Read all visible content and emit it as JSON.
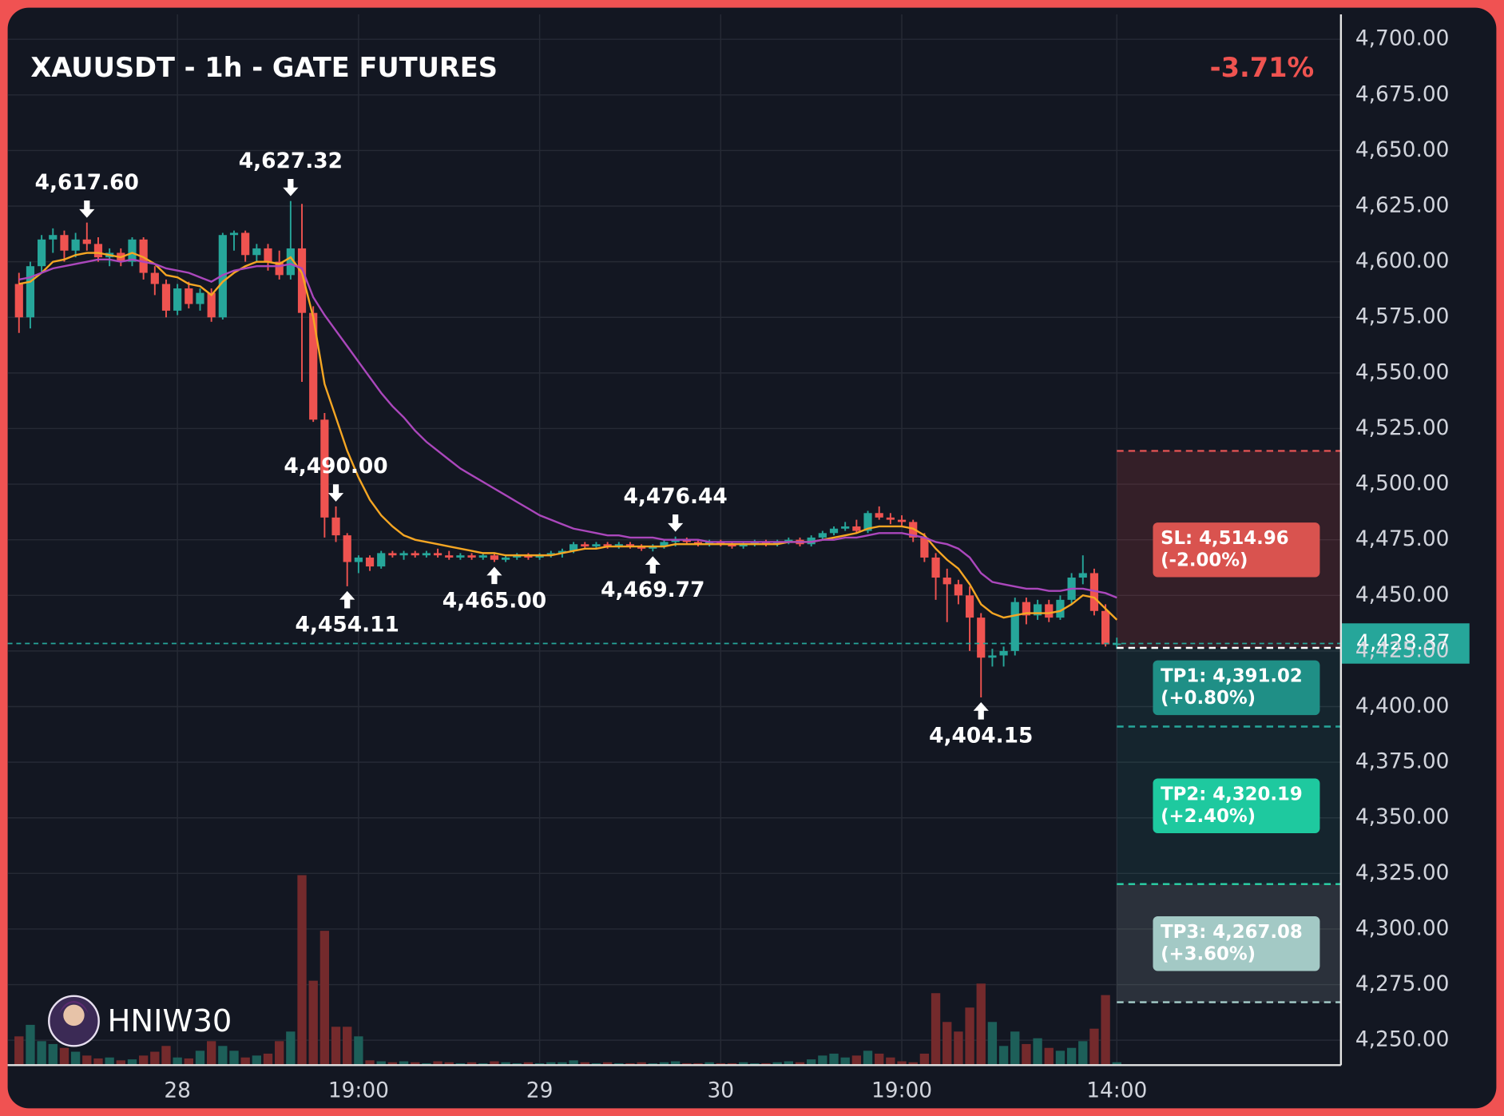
{
  "chart_data": {
    "type": "candlestick",
    "title": "XAUUSDT - 1h - GATE FUTURES",
    "change": "-3.71%",
    "open": [
      4590,
      4575,
      4598,
      4610,
      4612,
      4605,
      4610,
      4608,
      4602,
      4604,
      4600,
      4610,
      4595,
      4590,
      4578,
      4588,
      4581,
      4586,
      4575,
      4612,
      4613,
      4603,
      4606,
      4600,
      4594,
      4606,
      4577,
      4529,
      4485,
      4477,
      4465,
      4467,
      4463,
      4469,
      4468,
      4469,
      4468,
      4469,
      4468,
      4467,
      4468,
      4467,
      4468,
      4466,
      4467,
      4468,
      4467,
      4468,
      4469,
      4470,
      4473,
      4472,
      4473,
      4472,
      4473,
      4472,
      4471,
      4472,
      4474,
      4475,
      4474,
      4473,
      4474,
      4473,
      4472,
      4473,
      4474,
      4473,
      4474,
      4475,
      4473,
      4476,
      4478,
      4480,
      4481,
      4479,
      4487,
      4485,
      4484,
      4483,
      4476,
      4467,
      4458,
      4455,
      4450,
      4440,
      4422,
      4423,
      4425,
      4447,
      4441,
      4446,
      4440,
      4448,
      4458,
      4460,
      4443,
      4428
    ],
    "high": [
      4595,
      4600,
      4612,
      4615,
      4614,
      4613,
      4617.6,
      4611,
      4606,
      4606,
      4611,
      4611,
      4598,
      4592,
      4590,
      4591,
      4588,
      4588,
      4613,
      4614,
      4614,
      4608,
      4608,
      4605,
      4627.32,
      4626,
      4580,
      4532,
      4490,
      4478,
      4468,
      4468,
      4470,
      4470,
      4470,
      4470,
      4470,
      4471,
      4470,
      4469,
      4469,
      4469,
      4469,
      4468,
      4469,
      4469,
      4469,
      4470,
      4471,
      4474,
      4474,
      4474,
      4474,
      4474,
      4474,
      4473,
      4473,
      4475,
      4476.44,
      4476,
      4475,
      4475,
      4475,
      4474,
      4474,
      4475,
      4475,
      4475,
      4476,
      4476,
      4477,
      4479,
      4481,
      4483,
      4484,
      4488,
      4490,
      4487,
      4486,
      4484,
      4478,
      4469,
      4462,
      4457,
      4454,
      4442,
      4426,
      4427,
      4449,
      4449,
      4448,
      4448,
      4450,
      4460,
      4468,
      4462,
      4446,
      4431
    ],
    "low": [
      4568,
      4570,
      4595,
      4604,
      4600,
      4602,
      4605,
      4600,
      4598,
      4598,
      4598,
      4592,
      4585,
      4575,
      4576,
      4579,
      4578,
      4573,
      4574,
      4605,
      4600,
      4600,
      4596,
      4592,
      4592,
      4546,
      4528,
      4476,
      4474,
      4454.11,
      4460,
      4461,
      4462,
      4467,
      4466,
      4467,
      4467,
      4467,
      4466,
      4466,
      4466,
      4466,
      4465,
      4465,
      4466,
      4466,
      4466,
      4467,
      4467,
      4469,
      4471,
      4471,
      4471,
      4471,
      4471,
      4470,
      4469.77,
      4471,
      4472,
      4473,
      4472,
      4472,
      4472,
      4471,
      4471,
      4472,
      4472,
      4472,
      4473,
      4472,
      4472,
      4475,
      4477,
      4479,
      4478,
      4478,
      4484,
      4482,
      4481,
      4474,
      4465,
      4448,
      4438,
      4446,
      4425,
      4404.15,
      4418,
      4418,
      4423,
      4437,
      4439,
      4438,
      4439,
      4446,
      4455,
      4441,
      4427,
      4426
    ],
    "close": [
      4575,
      4598,
      4610,
      4612,
      4605,
      4610,
      4608,
      4602,
      4604,
      4600,
      4610,
      4595,
      4590,
      4578,
      4588,
      4581,
      4586,
      4575,
      4612,
      4613,
      4603,
      4606,
      4600,
      4594,
      4606,
      4577,
      4529,
      4485,
      4477,
      4465,
      4467,
      4463,
      4469,
      4468,
      4469,
      4468,
      4469,
      4468,
      4467,
      4468,
      4467,
      4468,
      4466,
      4467,
      4468,
      4467,
      4468,
      4469,
      4470,
      4473,
      4472,
      4473,
      4472,
      4473,
      4472,
      4471,
      4472,
      4474,
      4475,
      4474,
      4473,
      4474,
      4473,
      4472,
      4473,
      4474,
      4473,
      4474,
      4475,
      4473,
      4476,
      4478,
      4480,
      4481,
      4479,
      4487,
      4485,
      4484,
      4483,
      4476,
      4467,
      4458,
      4455,
      4450,
      4440,
      4422,
      4423,
      4425,
      4447,
      4441,
      4446,
      4440,
      4448,
      4458,
      4460,
      4443,
      4428,
      4428.37
    ],
    "volume": [
      30,
      42,
      25,
      22,
      18,
      14,
      10,
      7,
      8,
      5,
      6,
      10,
      14,
      20,
      8,
      7,
      15,
      25,
      20,
      15,
      8,
      10,
      12,
      25,
      35,
      198,
      88,
      140,
      40,
      40,
      30,
      5,
      4,
      3,
      4,
      3,
      2,
      4,
      3,
      2,
      3,
      2,
      4,
      3,
      2,
      3,
      2,
      3,
      3,
      5,
      3,
      2,
      3,
      2,
      2,
      3,
      2,
      3,
      4,
      2,
      2,
      3,
      2,
      2,
      3,
      2,
      2,
      3,
      4,
      3,
      6,
      10,
      12,
      8,
      10,
      15,
      12,
      8,
      4,
      3,
      12,
      75,
      45,
      35,
      60,
      85,
      45,
      20,
      35,
      22,
      28,
      18,
      15,
      18,
      25,
      38,
      73,
      3
    ],
    "up_color": "#26a69a",
    "down_color": "#ef5350",
    "volume_up_color": "#1d5f59",
    "volume_down_color": "#742a2c",
    "ma_lines": [
      {
        "color": "#f5a623",
        "values": [
          4590,
          4591,
          4595,
          4600,
          4601,
          4603,
          4604,
          4604,
          4603,
          4602,
          4604,
          4602,
          4599,
          4594,
          4593,
          4590,
          4589,
          4585,
          4591,
          4595,
          4598,
          4600,
          4600,
          4599,
          4602,
          4595,
          4575,
          4545,
          4530,
          4515,
          4503,
          4493,
          4486,
          4481,
          4477,
          4475,
          4474,
          4473,
          4472,
          4471,
          4470,
          4469,
          4469,
          4468,
          4468,
          4468,
          4468,
          4468,
          4469,
          4470,
          4471,
          4471,
          4472,
          4472,
          4472,
          4472,
          4472,
          4472,
          4473,
          4473,
          4473,
          4473,
          4473,
          4473,
          4473,
          4473,
          4473,
          4473,
          4474,
          4474,
          4474,
          4475,
          4476,
          4477,
          4478,
          4480,
          4481,
          4481,
          4481,
          4480,
          4477,
          4471,
          4466,
          4462,
          4455,
          4446,
          4442,
          4440,
          4441,
          4442,
          4442,
          4442,
          4443,
          4446,
          4450,
          4449,
          4444,
          4439
        ]
      },
      {
        "color": "#ab47bc",
        "values": [
          4592,
          4593,
          4595,
          4597,
          4598,
          4599,
          4600,
          4601,
          4601,
          4600,
          4601,
          4600,
          4599,
          4597,
          4596,
          4595,
          4593,
          4591,
          4594,
          4596,
          4597,
          4598,
          4598,
          4598,
          4599,
          4597,
          4584,
          4576,
          4569,
          4562,
          4555,
          4548,
          4541,
          4535,
          4530,
          4524,
          4519,
          4515,
          4511,
          4507,
          4504,
          4501,
          4498,
          4495,
          4492,
          4489,
          4486,
          4484,
          4482,
          4480,
          4479,
          4478,
          4477,
          4477,
          4476,
          4476,
          4476,
          4475,
          4475,
          4475,
          4475,
          4474,
          4474,
          4474,
          4474,
          4474,
          4474,
          4474,
          4474,
          4474,
          4474,
          4475,
          4475,
          4476,
          4476,
          4477,
          4478,
          4478,
          4478,
          4477,
          4476,
          4474,
          4473,
          4471,
          4467,
          4460,
          4456,
          4455,
          4454,
          4453,
          4453,
          4452,
          4452,
          4453,
          4453,
          4452,
          4451,
          4449
        ]
      }
    ],
    "xlim": [
      -1,
      116.8
    ],
    "xticks": [
      {
        "value": 14,
        "label": "28"
      },
      {
        "value": 30,
        "label": "19:00"
      },
      {
        "value": 46,
        "label": "29"
      },
      {
        "value": 62,
        "label": "30"
      },
      {
        "value": 78,
        "label": "19:00"
      },
      {
        "value": 97,
        "label": "14:00"
      }
    ],
    "ylim": [
      4238.8,
      4711.2
    ],
    "yticks": [
      {
        "value": 4250,
        "label": "4,250.00"
      },
      {
        "value": 4275,
        "label": "4,275.00"
      },
      {
        "value": 4300,
        "label": "4,300.00"
      },
      {
        "value": 4325,
        "label": "4,325.00"
      },
      {
        "value": 4350,
        "label": "4,350.00"
      },
      {
        "value": 4375,
        "label": "4,375.00"
      },
      {
        "value": 4400,
        "label": "4,400.00"
      },
      {
        "value": 4425,
        "label": "4,425.00"
      },
      {
        "value": 4450,
        "label": "4,450.00"
      },
      {
        "value": 4475,
        "label": "4,475.00"
      },
      {
        "value": 4500,
        "label": "4,500.00"
      },
      {
        "value": 4525,
        "label": "4,525.00"
      },
      {
        "value": 4550,
        "label": "4,550.00"
      },
      {
        "value": 4575,
        "label": "4,575.00"
      },
      {
        "value": 4600,
        "label": "4,600.00"
      },
      {
        "value": 4625,
        "label": "4,625.00"
      },
      {
        "value": 4650,
        "label": "4,650.00"
      },
      {
        "value": 4675,
        "label": "4,675.00"
      },
      {
        "value": 4700,
        "label": "4,700.00"
      }
    ],
    "grid": true,
    "annotations": [
      {
        "value": 4617.6,
        "label": "4,617.60"
      },
      {
        "value": 4627.32,
        "label": "4,627.32"
      },
      {
        "value": 4454.11,
        "label": "4,454.11"
      },
      {
        "value": 4465,
        "label": "4,465.00"
      },
      {
        "value": 4469.77,
        "label": "4,469.77"
      },
      {
        "value": 4476.44,
        "label": "4,476.44"
      },
      {
        "value": 4490,
        "label": "4,490.00"
      },
      {
        "value": 4404.15,
        "label": "4,404.15"
      }
    ],
    "last_price": {
      "value": 4428.37,
      "label": "4,428.37",
      "color": "#26a69a"
    },
    "entry": 4426.4,
    "levels": [
      {
        "value": 4514.96,
        "label": "SL: 4,514.96",
        "note": "(-2.00%)",
        "color": "#e05252",
        "box_color": "#d9534f",
        "zone_color": "rgba(239,83,80,0.15)"
      },
      {
        "value": 4391.02,
        "label": "TP1: 4,391.02",
        "note": "(+0.80%)",
        "color": "#26a69a",
        "box_color": "#1f8f86",
        "zone_color": "rgba(38,166,154,0.10)"
      },
      {
        "value": 4320.19,
        "label": "TP2: 4,320.19",
        "note": "(+2.40%)",
        "color": "#2bd4a8",
        "box_color": "#1ec99f",
        "zone_color": "rgba(38,166,154,0.10)"
      },
      {
        "value": 4267.08,
        "label": "TP3: 4,267.08",
        "note": "(+3.60%)",
        "color": "#a7cfcb",
        "box_color": "#a3c9c5",
        "zone_color": "rgba(190,210,210,0.14)"
      }
    ]
  },
  "watermark": "HNIW30"
}
